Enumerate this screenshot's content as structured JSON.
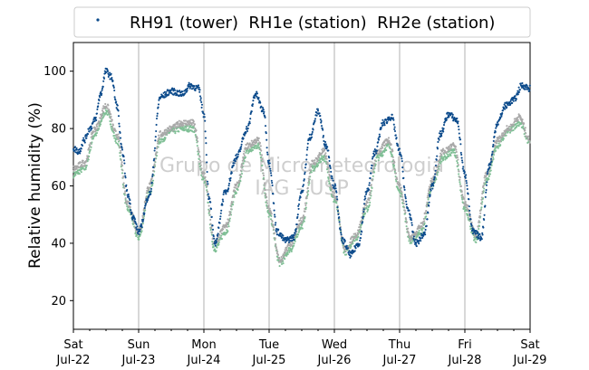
{
  "chart_data": {
    "type": "scatter",
    "ylabel": "Relative humidity (%)",
    "xlabel": "",
    "xlim": [
      "2017-07-22",
      "2017-07-29"
    ],
    "ylim": [
      10,
      110
    ],
    "yticks": [
      20,
      40,
      60,
      80,
      100
    ],
    "xticks": [
      {
        "weekday": "Sat",
        "date": "Jul-22"
      },
      {
        "weekday": "Sun",
        "date": "Jul-23"
      },
      {
        "weekday": "Mon",
        "date": "Jul-24"
      },
      {
        "weekday": "Tue",
        "date": "Jul-25"
      },
      {
        "weekday": "Wed",
        "date": "Jul-26"
      },
      {
        "weekday": "Thu",
        "date": "Jul-27"
      },
      {
        "weekday": "Fri",
        "date": "Jul-28"
      },
      {
        "weekday": "Sat",
        "date": "Jul-29"
      }
    ],
    "grid": "vertical",
    "legend_position": "top",
    "legend_text": "RH91 (tower)  RH1e (station)  RH2e (station)",
    "watermark": [
      "Grupo de Micrometeorologia",
      "IAG - USP"
    ],
    "series": [
      {
        "name": "RH91 (tower)",
        "color": "#0b4a8b",
        "x": [
          "2017-07-22 00:00",
          "2017-07-22 02:00",
          "2017-07-22 04:00",
          "2017-07-22 06:00",
          "2017-07-22 08:00",
          "2017-07-22 10:00",
          "2017-07-22 12:00",
          "2017-07-22 14:00",
          "2017-07-22 16:00",
          "2017-07-22 18:00",
          "2017-07-22 20:00",
          "2017-07-22 22:00",
          "2017-07-23 00:00",
          "2017-07-23 04:00",
          "2017-07-23 08:00",
          "2017-07-23 12:00",
          "2017-07-23 16:00",
          "2017-07-23 19:00",
          "2017-07-23 22:00",
          "2017-07-24 00:00",
          "2017-07-24 02:00",
          "2017-07-24 04:00",
          "2017-07-24 08:00",
          "2017-07-24 12:00",
          "2017-07-24 16:00",
          "2017-07-24 19:00",
          "2017-07-24 22:00",
          "2017-07-25 00:00",
          "2017-07-25 03:00",
          "2017-07-25 06:00",
          "2017-07-25 09:00",
          "2017-07-25 12:00",
          "2017-07-25 15:00",
          "2017-07-25 18:00",
          "2017-07-25 21:00",
          "2017-07-26 00:00",
          "2017-07-26 03:00",
          "2017-07-26 06:00",
          "2017-07-26 09:00",
          "2017-07-26 12:00",
          "2017-07-26 15:00",
          "2017-07-26 18:00",
          "2017-07-26 21:00",
          "2017-07-27 00:00",
          "2017-07-27 03:00",
          "2017-07-27 06:00",
          "2017-07-27 09:00",
          "2017-07-27 12:00",
          "2017-07-27 15:00",
          "2017-07-27 18:00",
          "2017-07-27 21:00",
          "2017-07-28 00:00",
          "2017-07-28 03:00",
          "2017-07-28 06:00",
          "2017-07-28 09:00",
          "2017-07-28 12:00",
          "2017-07-28 15:00",
          "2017-07-28 18:00",
          "2017-07-28 21:00",
          "2017-07-29 00:00"
        ],
        "y": [
          73,
          72,
          76,
          80,
          83,
          92,
          100,
          98,
          88,
          72,
          57,
          49,
          44,
          57,
          91,
          93,
          92,
          95,
          94,
          85,
          55,
          40,
          58,
          70,
          80,
          92,
          86,
          68,
          44,
          41,
          42,
          58,
          77,
          86,
          74,
          60,
          41,
          36,
          40,
          58,
          72,
          82,
          84,
          72,
          52,
          40,
          43,
          60,
          78,
          85,
          83,
          64,
          44,
          42,
          67,
          82,
          88,
          90,
          95,
          94
        ]
      },
      {
        "name": "RH1e (station)",
        "color": "#7fbf95",
        "x": [
          "2017-07-22 00:00",
          "2017-07-22 04:00",
          "2017-07-22 08:00",
          "2017-07-22 12:00",
          "2017-07-22 16:00",
          "2017-07-22 20:00",
          "2017-07-23 00:00",
          "2017-07-23 04:00",
          "2017-07-23 08:00",
          "2017-07-23 12:00",
          "2017-07-23 16:00",
          "2017-07-23 20:00",
          "2017-07-24 00:00",
          "2017-07-24 04:00",
          "2017-07-24 08:00",
          "2017-07-24 12:00",
          "2017-07-24 16:00",
          "2017-07-24 20:00",
          "2017-07-25 00:00",
          "2017-07-25 04:00",
          "2017-07-25 08:00",
          "2017-07-25 12:00",
          "2017-07-25 16:00",
          "2017-07-25 20:00",
          "2017-07-26 00:00",
          "2017-07-26 04:00",
          "2017-07-26 08:00",
          "2017-07-26 12:00",
          "2017-07-26 16:00",
          "2017-07-26 20:00",
          "2017-07-27 00:00",
          "2017-07-27 04:00",
          "2017-07-27 08:00",
          "2017-07-27 12:00",
          "2017-07-27 16:00",
          "2017-07-27 20:00",
          "2017-07-28 00:00",
          "2017-07-28 04:00",
          "2017-07-28 08:00",
          "2017-07-28 12:00",
          "2017-07-28 16:00",
          "2017-07-28 20:00",
          "2017-07-29 00:00"
        ],
        "y": [
          64,
          66,
          78,
          86,
          76,
          52,
          42,
          58,
          76,
          79,
          80,
          80,
          62,
          38,
          44,
          58,
          72,
          74,
          50,
          33,
          38,
          46,
          66,
          70,
          55,
          37,
          42,
          52,
          70,
          74,
          58,
          41,
          44,
          60,
          70,
          72,
          52,
          41,
          62,
          74,
          79,
          82,
          75
        ]
      },
      {
        "name": "RH2e (station)",
        "color": "#a9a9a9",
        "x": [
          "2017-07-22 00:00",
          "2017-07-22 04:00",
          "2017-07-22 08:00",
          "2017-07-22 12:00",
          "2017-07-22 16:00",
          "2017-07-22 20:00",
          "2017-07-23 00:00",
          "2017-07-23 04:00",
          "2017-07-23 08:00",
          "2017-07-23 12:00",
          "2017-07-23 16:00",
          "2017-07-23 20:00",
          "2017-07-24 00:00",
          "2017-07-24 04:00",
          "2017-07-24 08:00",
          "2017-07-24 12:00",
          "2017-07-24 16:00",
          "2017-07-24 20:00",
          "2017-07-25 00:00",
          "2017-07-25 04:00",
          "2017-07-25 08:00",
          "2017-07-25 12:00",
          "2017-07-25 16:00",
          "2017-07-25 20:00",
          "2017-07-26 00:00",
          "2017-07-26 04:00",
          "2017-07-26 08:00",
          "2017-07-26 12:00",
          "2017-07-26 16:00",
          "2017-07-26 20:00",
          "2017-07-27 00:00",
          "2017-07-27 04:00",
          "2017-07-27 08:00",
          "2017-07-27 12:00",
          "2017-07-27 16:00",
          "2017-07-27 20:00",
          "2017-07-28 00:00",
          "2017-07-28 04:00",
          "2017-07-28 08:00",
          "2017-07-28 12:00",
          "2017-07-28 16:00",
          "2017-07-28 20:00",
          "2017-07-29 00:00"
        ],
        "y": [
          66,
          68,
          80,
          88,
          78,
          54,
          44,
          60,
          78,
          80,
          82,
          82,
          64,
          40,
          46,
          60,
          74,
          76,
          52,
          34,
          40,
          48,
          68,
          72,
          57,
          38,
          43,
          54,
          72,
          76,
          60,
          42,
          46,
          62,
          72,
          74,
          54,
          43,
          64,
          76,
          80,
          84,
          76
        ]
      }
    ]
  }
}
